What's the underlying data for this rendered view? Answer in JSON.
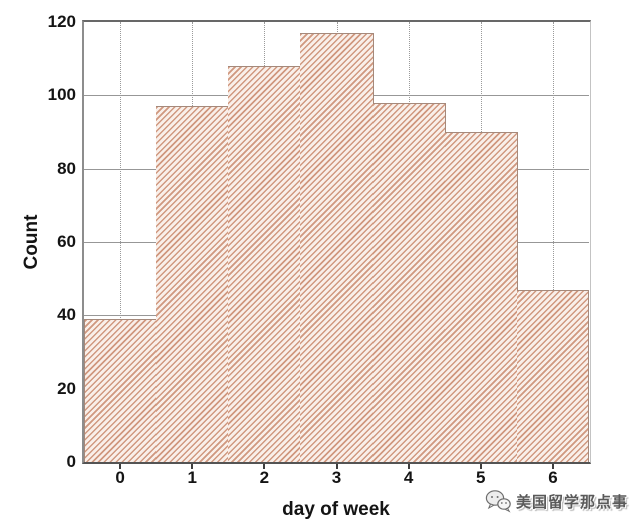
{
  "figure": {
    "watermark": {
      "icon": "wechat-icon",
      "text": "美国留学那点事"
    },
    "colors": {
      "hatch_stripe": "#d0987f",
      "hatch_background": "#f9efe9",
      "bar_edge": "#a5897b",
      "gridline": "#979797",
      "spine": "#686868",
      "tick_text": "#141414"
    }
  },
  "chart_data": {
    "type": "bar",
    "subtype": "histogram",
    "hatch": "diagonal /",
    "title": "",
    "xlabel": "day of week",
    "ylabel": "Count",
    "categories": [
      "0",
      "1",
      "2",
      "3",
      "4",
      "5",
      "6"
    ],
    "values": [
      39,
      97,
      108,
      117,
      98,
      90,
      47
    ],
    "xlim": [
      -0.5,
      6.5
    ],
    "ylim": [
      0,
      120
    ],
    "yticks": [
      0,
      20,
      40,
      60,
      80,
      100,
      120
    ],
    "grid": {
      "horizontal": "solid",
      "vertical": "dotted"
    },
    "legend_position": "none"
  }
}
